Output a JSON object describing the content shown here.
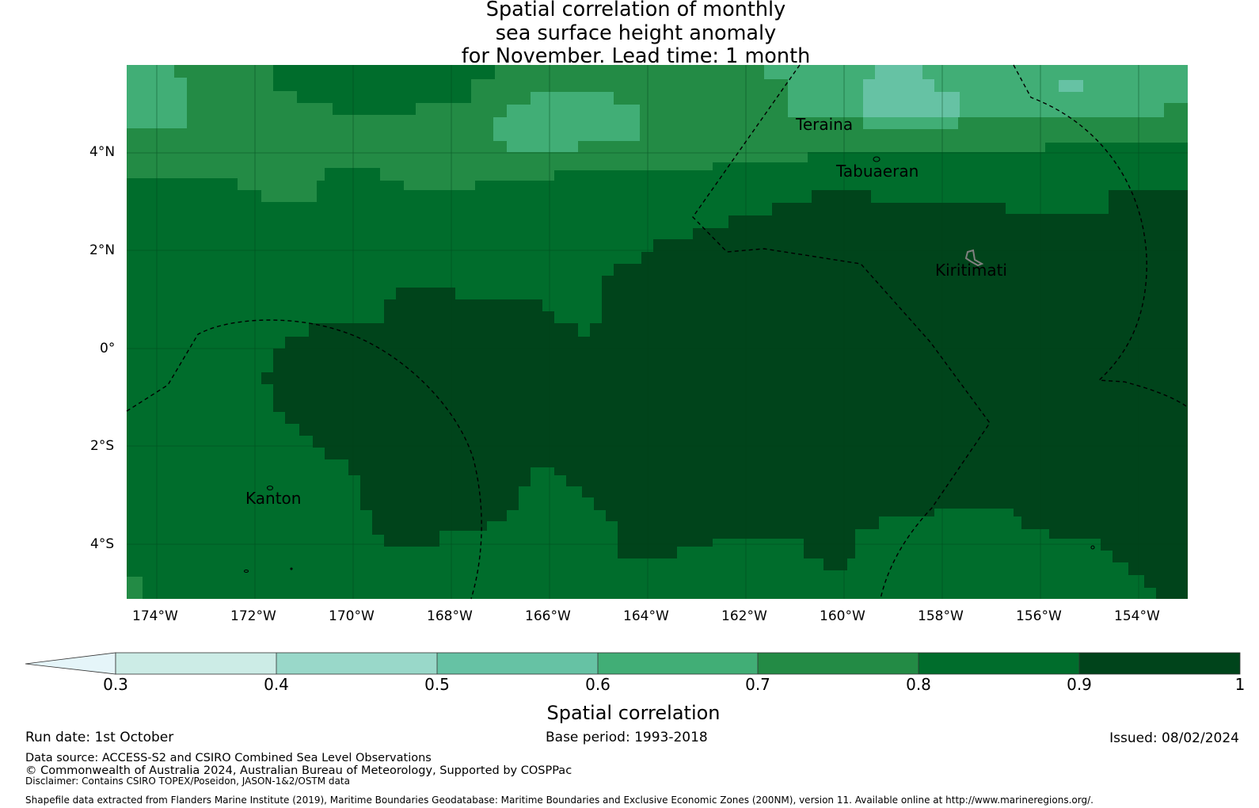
{
  "title": {
    "line1": "Spatial correlation of monthly",
    "line2": "sea surface height anomaly",
    "line3": "for November. Lead time: 1 month"
  },
  "map": {
    "extent": {
      "lon_min": -174.6,
      "lon_max": -153.0,
      "lat_min": -5.1,
      "lat_max": 5.8
    },
    "lon_ticks": [
      "174°W",
      "172°W",
      "170°W",
      "168°W",
      "166°W",
      "164°W",
      "162°W",
      "160°W",
      "158°W",
      "156°W",
      "154°W"
    ],
    "lat_ticks": [
      "4°N",
      "2°N",
      "0°",
      "2°S",
      "4°S"
    ],
    "places": {
      "teraina": "Teraina",
      "tabuaeran": "Tabuaeran",
      "kiritimati": "Kiritimati",
      "kanton": "Kanton"
    }
  },
  "colorbar": {
    "ticks": [
      "0.3",
      "0.4",
      "0.5",
      "0.6",
      "0.7",
      "0.8",
      "0.9",
      "1"
    ],
    "colors": {
      "below_0_3": "#e5f5f9",
      "c_0_3_0_4": "#ccece6",
      "c_0_4_0_5": "#99d8c9",
      "c_0_5_0_6": "#66c2a4",
      "c_0_6_0_7": "#41ae76",
      "c_0_7_0_8": "#238b45",
      "c_0_8_0_9": "#006d2c",
      "c_0_9_1_0": "#00441b"
    },
    "label": "Spatial correlation"
  },
  "footer": {
    "run_date": "Run date: 1st October",
    "base_period": "Base period: 1993-2018",
    "issued": "Issued: 08/02/2024",
    "data_source": "Data source: ACCESS-S2 and CSIRO Combined Sea Level Observations",
    "copyright": "© Commonwealth of Australia 2024, Australian Bureau of Meteorology, Supported by COSPPac",
    "disclaimer": "Disclaimer: Contains CSIRO TOPEX/Poseidon, JASON-1&2/OSTM data",
    "shapefile": "Shapefile data extracted from Flanders Marine Institute (2019), Maritime Boundaries Geodatabase: Maritime Boundaries and Exclusive Economic Zones (200NM), version 11. Available online at http://www.marineregions.org/."
  }
}
